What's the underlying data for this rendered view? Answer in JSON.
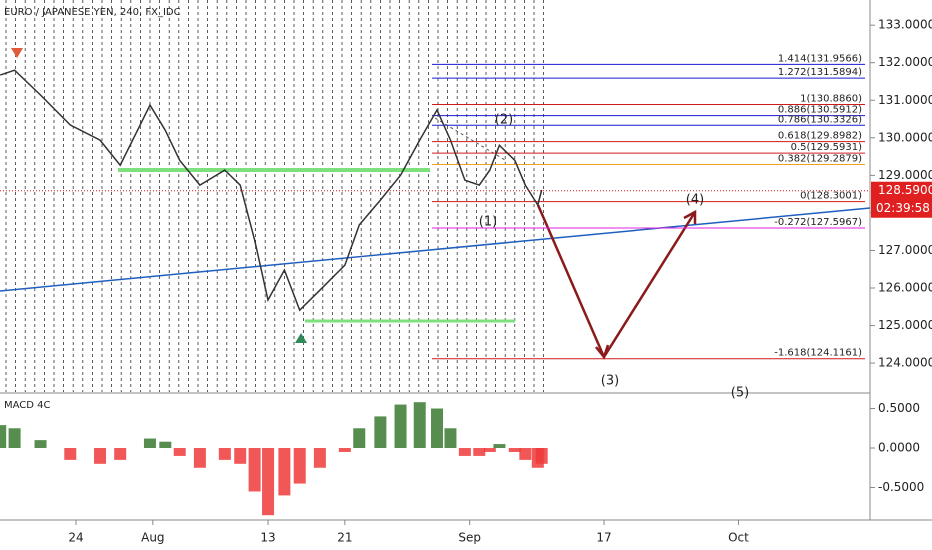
{
  "chart_data": [
    {
      "type": "line",
      "title": "EURO / JAPANESE YEN, 240, FX_IDC",
      "color": "#333333",
      "x": [
        15.1,
        16.6,
        19.3,
        22.4,
        25.5,
        27.6,
        30.7,
        32.3,
        33.8,
        35.9,
        38.5,
        40.1,
        41.6,
        43.0,
        44.7,
        46.3,
        48.4,
        51.0,
        52.5,
        54.7,
        56.8,
        58.8,
        60.6,
        62.0,
        63.5,
        65.0,
        66.1,
        67.1,
        68.7,
        69.8,
        71.1,
        71.5
      ],
      "values": [
        131.67,
        131.8,
        131.14,
        130.34,
        129.94,
        129.27,
        130.87,
        130.2,
        129.4,
        128.74,
        129.14,
        128.74,
        127.28,
        125.68,
        126.48,
        125.41,
        125.94,
        126.61,
        127.68,
        128.34,
        129.0,
        129.94,
        130.74,
        129.94,
        128.87,
        128.74,
        129.14,
        129.8,
        129.4,
        128.74,
        128.21,
        128.61
      ],
      "xlim": [
        15.08,
        105.7
      ],
      "xticks": [
        {
          "value": 23,
          "label": "24"
        },
        {
          "value": 31,
          "label": "Aug"
        },
        {
          "value": 43,
          "label": "13"
        },
        {
          "value": 51,
          "label": "21"
        },
        {
          "value": 64,
          "label": "Sep"
        },
        {
          "value": 78,
          "label": "17"
        },
        {
          "value": 92,
          "label": "Oct"
        }
      ],
      "ylim": [
        123.23,
        133.67
      ],
      "yticks": [
        {
          "value": 124,
          "label": "124.0000"
        },
        {
          "value": 125,
          "label": "125.0000"
        },
        {
          "value": 126,
          "label": "126.0000"
        },
        {
          "value": 127,
          "label": "127.0000"
        },
        {
          "value": 128,
          "label": "128.0000"
        },
        {
          "value": 129,
          "label": "129.0000"
        },
        {
          "value": 130,
          "label": "130.0000"
        },
        {
          "value": 131,
          "label": "131.0000"
        },
        {
          "value": 132,
          "label": "132.0000"
        },
        {
          "value": 133,
          "label": "133.0000"
        }
      ],
      "last_price": {
        "value": 128.59,
        "label": "128.5900"
      },
      "countdown": "02:39:58",
      "levels": [
        {
          "label": "1.414(131.9566)",
          "value": 131.9566,
          "color": "#1a1ad0"
        },
        {
          "label": "1.272(131.5894)",
          "value": 131.5894,
          "color": "#1a1ad0"
        },
        {
          "label": "1(130.8860)",
          "value": 130.886,
          "color": "#d01a1a"
        },
        {
          "label": "0.886(130.5912)",
          "value": 130.5912,
          "color": "#1a1ad0"
        },
        {
          "label": "0.786(130.3326)",
          "value": 130.3326,
          "color": "#1a1ad0"
        },
        {
          "label": "0.618(129.8982)",
          "value": 129.8982,
          "color": "#d01a1a"
        },
        {
          "label": "0.5(129.5931)",
          "value": 129.5931,
          "color": "#d01a1a"
        },
        {
          "label": "0.382(129.2879)",
          "value": 129.2879,
          "color": "#f0a020"
        },
        {
          "label": "0(128.3001)",
          "value": 128.3001,
          "color": "#d01a1a"
        },
        {
          "label": "-0.272(127.5967)",
          "value": 127.5967,
          "color": "#e020e0"
        },
        {
          "label": "-1.618(124.1161)",
          "value": 124.1161,
          "color": "#d01a1a"
        }
      ],
      "wave_labels": [
        "(1)",
        "(2)",
        "(3)",
        "(4)",
        "(5)"
      ]
    },
    {
      "type": "bar",
      "title": "MACD 4C",
      "positive_color": "#3a7a30",
      "negative_color": "#f03a3a",
      "x": [
        15.1,
        16.6,
        19.3,
        22.4,
        25.5,
        27.6,
        30.7,
        32.3,
        33.8,
        35.9,
        38.5,
        40.1,
        41.6,
        43.0,
        44.7,
        46.3,
        48.4,
        51.0,
        52.5,
        54.7,
        56.8,
        58.8,
        60.6,
        62.0,
        63.5,
        65.0,
        66.1,
        67.1,
        68.7,
        69.8,
        71.1,
        71.5
      ],
      "values": [
        0.29,
        0.25,
        0.1,
        -0.15,
        -0.2,
        -0.15,
        0.12,
        0.08,
        -0.1,
        -0.25,
        -0.15,
        -0.2,
        -0.55,
        -0.85,
        -0.6,
        -0.45,
        -0.25,
        -0.05,
        0.25,
        0.4,
        0.55,
        0.58,
        0.5,
        0.25,
        -0.1,
        -0.1,
        -0.05,
        0.05,
        -0.05,
        -0.15,
        -0.25,
        -0.2
      ],
      "ylim": [
        -0.911,
        0.671
      ],
      "yticks": [
        {
          "value": 0.5,
          "label": "0.5000"
        },
        {
          "value": 0,
          "label": "0.0000"
        },
        {
          "value": -0.5,
          "label": "-0.5000"
        }
      ]
    }
  ]
}
